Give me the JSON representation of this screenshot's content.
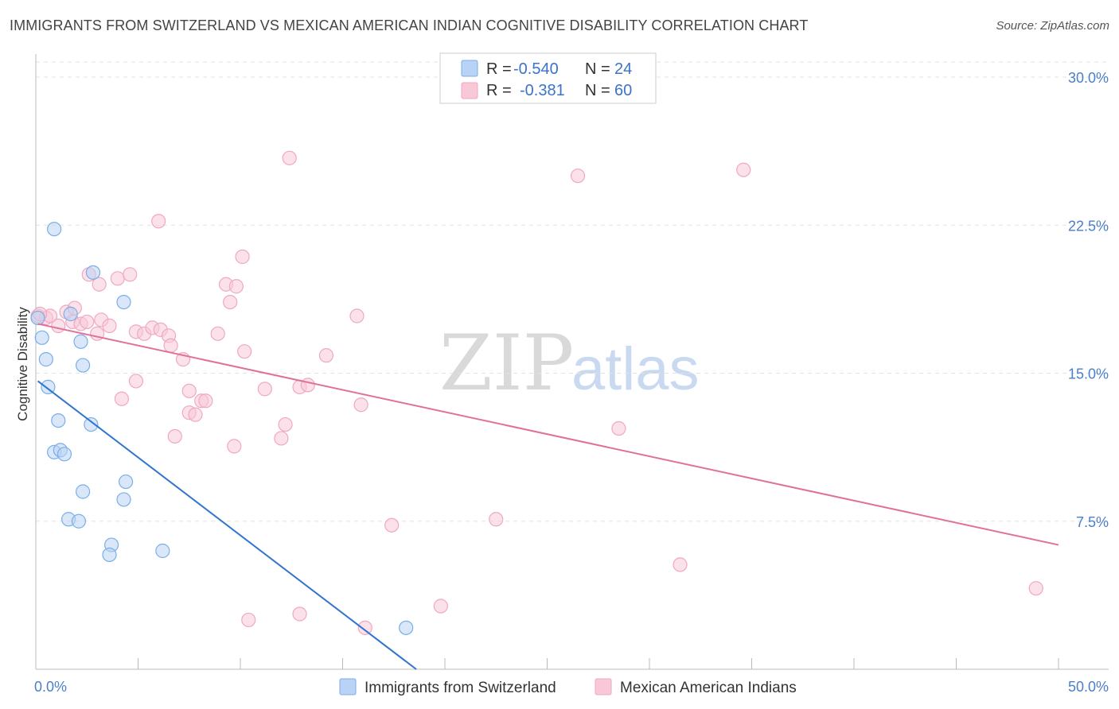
{
  "header": {
    "title": "IMMIGRANTS FROM SWITZERLAND VS MEXICAN AMERICAN INDIAN COGNITIVE DISABILITY CORRELATION CHART",
    "source": "Source: ZipAtlas.com"
  },
  "watermark": {
    "zip": "ZIP",
    "atlas": "atlas"
  },
  "chart_data": {
    "type": "scatter",
    "title": "IMMIGRANTS FROM SWITZERLAND VS MEXICAN AMERICAN INDIAN COGNITIVE DISABILITY CORRELATION CHART",
    "xlabel": "",
    "ylabel": "Cognitive Disability",
    "xlim": [
      0,
      50
    ],
    "ylim": [
      0,
      30
    ],
    "x_tick_labels": {
      "left": "0.0%",
      "right": "50.0%"
    },
    "y_ticks": [
      {
        "value": 7.5,
        "label": "7.5%"
      },
      {
        "value": 15.0,
        "label": "15.0%"
      },
      {
        "value": 22.5,
        "label": "22.5%"
      },
      {
        "value": 30.0,
        "label": "30.0%"
      }
    ],
    "legend": [
      {
        "r_label": "R =",
        "r_value": "-0.540",
        "n_label": "N =",
        "n_value": "24"
      },
      {
        "r_label": "R =",
        "r_value": "-0.381",
        "n_label": "N =",
        "n_value": "60"
      }
    ],
    "series": [
      {
        "name": "Immigrants from Switzerland",
        "color": "#7aaee8",
        "fill": "#b9d3f4",
        "line_color": "#2f74d0",
        "trend": {
          "x0": 0.1,
          "y0": 14.6,
          "x1": 18.6,
          "y1": 0.0
        },
        "points": [
          [
            0.1,
            17.8
          ],
          [
            0.3,
            16.8
          ],
          [
            0.5,
            15.7
          ],
          [
            0.6,
            14.3
          ],
          [
            0.9,
            11.0
          ],
          [
            1.1,
            12.6
          ],
          [
            1.2,
            11.1
          ],
          [
            1.4,
            10.9
          ],
          [
            0.9,
            22.3
          ],
          [
            1.7,
            18.0
          ],
          [
            2.2,
            16.6
          ],
          [
            2.8,
            20.1
          ],
          [
            2.3,
            15.4
          ],
          [
            2.7,
            12.4
          ],
          [
            2.3,
            9.0
          ],
          [
            4.3,
            18.6
          ],
          [
            4.3,
            8.6
          ],
          [
            1.6,
            7.6
          ],
          [
            2.1,
            7.5
          ],
          [
            3.7,
            6.3
          ],
          [
            3.6,
            5.8
          ],
          [
            4.4,
            9.5
          ],
          [
            6.2,
            6.0
          ],
          [
            18.1,
            2.1
          ]
        ]
      },
      {
        "name": "Mexican American Indians",
        "color": "#f0a8c0",
        "fill": "#f8c8d8",
        "line_color": "#e0709a",
        "trend": {
          "x0": 0.1,
          "y0": 17.5,
          "x1": 50.0,
          "y1": 6.3
        },
        "points": [
          [
            0.1,
            17.9
          ],
          [
            0.5,
            17.8
          ],
          [
            0.7,
            17.9
          ],
          [
            1.1,
            17.4
          ],
          [
            1.5,
            18.1
          ],
          [
            1.8,
            17.6
          ],
          [
            1.9,
            18.3
          ],
          [
            2.2,
            17.5
          ],
          [
            2.5,
            17.6
          ],
          [
            3.0,
            17.0
          ],
          [
            3.2,
            17.7
          ],
          [
            3.6,
            17.4
          ],
          [
            2.6,
            20.0
          ],
          [
            3.1,
            19.5
          ],
          [
            4.0,
            19.8
          ],
          [
            4.6,
            20.0
          ],
          [
            4.9,
            17.1
          ],
          [
            5.3,
            17.0
          ],
          [
            5.7,
            17.3
          ],
          [
            6.1,
            17.2
          ],
          [
            6.5,
            16.9
          ],
          [
            6.6,
            16.4
          ],
          [
            7.2,
            15.7
          ],
          [
            7.5,
            14.1
          ],
          [
            4.2,
            13.7
          ],
          [
            4.9,
            14.6
          ],
          [
            6.0,
            22.7
          ],
          [
            7.5,
            13.0
          ],
          [
            7.8,
            12.9
          ],
          [
            8.1,
            13.6
          ],
          [
            8.3,
            13.6
          ],
          [
            6.8,
            11.8
          ],
          [
            8.9,
            17.0
          ],
          [
            9.3,
            19.5
          ],
          [
            9.5,
            18.6
          ],
          [
            9.8,
            19.4
          ],
          [
            10.1,
            20.9
          ],
          [
            10.2,
            16.1
          ],
          [
            11.2,
            14.2
          ],
          [
            12.0,
            11.7
          ],
          [
            12.2,
            12.4
          ],
          [
            12.4,
            25.9
          ],
          [
            12.9,
            14.3
          ],
          [
            13.3,
            14.4
          ],
          [
            9.7,
            11.3
          ],
          [
            14.2,
            15.9
          ],
          [
            15.7,
            17.9
          ],
          [
            15.9,
            13.4
          ],
          [
            17.4,
            7.3
          ],
          [
            22.5,
            7.6
          ],
          [
            26.5,
            25.0
          ],
          [
            28.5,
            12.2
          ],
          [
            31.5,
            5.3
          ],
          [
            34.6,
            25.3
          ],
          [
            10.4,
            2.5
          ],
          [
            12.9,
            2.8
          ],
          [
            16.1,
            2.1
          ],
          [
            19.8,
            3.2
          ],
          [
            48.9,
            4.1
          ],
          [
            0.2,
            18.0
          ]
        ]
      }
    ]
  }
}
